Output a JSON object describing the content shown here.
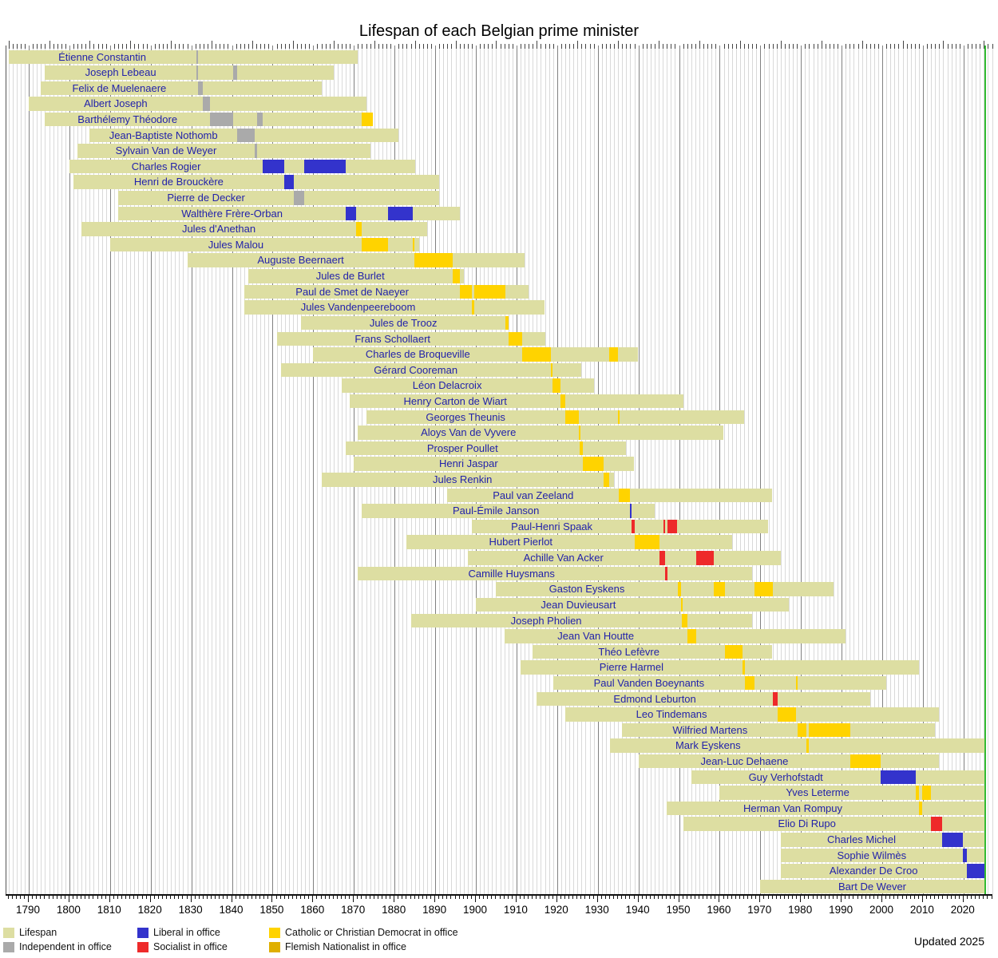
{
  "title": "Lifespan of each Belgian prime minister",
  "updated_note": "Updated 2025",
  "colors": {
    "lifespan": "#dddea2",
    "independent": "#aaaaaa",
    "liberal": "#3333cc",
    "socialist": "#ee2a2a",
    "catholic": "#ffd300",
    "flemish": "#dfaf00",
    "present_line": "#33bb33",
    "label_text": "#2222aa",
    "grid_minor": "#d9d9d9",
    "grid_major": "#808080"
  },
  "legend": [
    {
      "label": "Lifespan",
      "color_key": "lifespan",
      "col": 0,
      "row": 0
    },
    {
      "label": "Independent in office",
      "color_key": "independent",
      "col": 0,
      "row": 1
    },
    {
      "label": "Liberal in office",
      "color_key": "liberal",
      "col": 1,
      "row": 0
    },
    {
      "label": "Socialist in office",
      "color_key": "socialist",
      "col": 1,
      "row": 1
    },
    {
      "label": "Catholic or Christian Democrat in office",
      "color_key": "catholic",
      "col": 2,
      "row": 0
    },
    {
      "label": "Flemish Nationalist in office",
      "color_key": "flemish",
      "col": 2,
      "row": 1
    }
  ],
  "chart_data": {
    "type": "timeline",
    "x_axis": {
      "min": 1784.5,
      "max": 2027.3,
      "year_tick_step": 1,
      "decade_tick_step": 10,
      "tick_labels": [
        "1790",
        "1800",
        "1810",
        "1820",
        "1830",
        "1840",
        "1850",
        "1860",
        "1870",
        "1880",
        "1890",
        "1900",
        "1910",
        "1920",
        "1930",
        "1940",
        "1950",
        "1960",
        "1970",
        "1980",
        "1990",
        "2000",
        "2010",
        "2020"
      ],
      "present_year": 2025.1
    },
    "pms": [
      {
        "name": "Étienne Constantin",
        "birth": 1785,
        "death": 1871,
        "terms": [
          [
            1831.16,
            1831.2,
            "independent"
          ]
        ]
      },
      {
        "name": "Joseph Lebeau",
        "birth": 1794,
        "death": 1865,
        "terms": [
          [
            1831.24,
            1831.55,
            "independent"
          ],
          [
            1840.3,
            1841.28,
            "independent"
          ]
        ]
      },
      {
        "name": "Felix de Muelenaere",
        "birth": 1793,
        "death": 1862,
        "terms": [
          [
            1831.56,
            1832.8,
            "independent"
          ]
        ]
      },
      {
        "name": "Albert Joseph",
        "birth": 1790,
        "death": 1873,
        "terms": [
          [
            1832.8,
            1834.59,
            "independent"
          ]
        ]
      },
      {
        "name": "Barthélemy Théodore",
        "birth": 1794,
        "death": 1874.7,
        "terms": [
          [
            1834.59,
            1840.3,
            "independent"
          ],
          [
            1846.25,
            1847.61,
            "independent"
          ],
          [
            1871.93,
            1874.64,
            "catholic"
          ]
        ]
      },
      {
        "name": "Jean-Baptiste Nothomb",
        "birth": 1805,
        "death": 1881,
        "terms": [
          [
            1841.28,
            1845.5,
            "independent"
          ]
        ]
      },
      {
        "name": "Sylvain Van de Weyer",
        "birth": 1802,
        "death": 1874,
        "terms": [
          [
            1845.58,
            1846.25,
            "independent"
          ]
        ]
      },
      {
        "name": "Charles Rogier",
        "birth": 1800,
        "death": 1885,
        "terms": [
          [
            1847.61,
            1852.83,
            "liberal"
          ],
          [
            1857.86,
            1868.01,
            "liberal"
          ]
        ]
      },
      {
        "name": "Henri de Brouckère",
        "birth": 1801,
        "death": 1891,
        "terms": [
          [
            1852.83,
            1855.24,
            "liberal"
          ]
        ]
      },
      {
        "name": "Pierre de Decker",
        "birth": 1812,
        "death": 1891,
        "terms": [
          [
            1855.24,
            1857.86,
            "independent"
          ]
        ]
      },
      {
        "name": "Walthère Frère-Orban",
        "birth": 1812,
        "death": 1896,
        "terms": [
          [
            1868.01,
            1870.5,
            "liberal"
          ],
          [
            1878.46,
            1884.45,
            "liberal"
          ]
        ]
      },
      {
        "name": "Jules d'Anethan",
        "birth": 1803,
        "death": 1888,
        "terms": [
          [
            1870.5,
            1871.93,
            "catholic"
          ]
        ]
      },
      {
        "name": "Jules Malou",
        "birth": 1810,
        "death": 1886,
        "terms": [
          [
            1871.93,
            1878.46,
            "catholic"
          ],
          [
            1884.45,
            1884.82,
            "catholic"
          ]
        ]
      },
      {
        "name": "Auguste Beernaert",
        "birth": 1829,
        "death": 1912,
        "terms": [
          [
            1884.82,
            1894.23,
            "catholic"
          ]
        ]
      },
      {
        "name": "Jules de Burlet",
        "birth": 1844,
        "death": 1897,
        "terms": [
          [
            1894.23,
            1896.15,
            "catholic"
          ]
        ]
      },
      {
        "name": "Paul de Smet de Naeyer",
        "birth": 1843,
        "death": 1913,
        "terms": [
          [
            1896.15,
            1899.07,
            "catholic"
          ],
          [
            1899.59,
            1907.33,
            "catholic"
          ]
        ]
      },
      {
        "name": "Jules Vandenpeereboom",
        "birth": 1843,
        "death": 1917,
        "terms": [
          [
            1899.07,
            1899.59,
            "catholic"
          ]
        ]
      },
      {
        "name": "Jules de Trooz",
        "birth": 1857,
        "death": 1908,
        "terms": [
          [
            1907.33,
            1908.0,
            "catholic"
          ]
        ]
      },
      {
        "name": "Frans Schollaert",
        "birth": 1851,
        "death": 1917,
        "terms": [
          [
            1908.02,
            1911.46,
            "catholic"
          ]
        ]
      },
      {
        "name": "Charles de Broqueville",
        "birth": 1860,
        "death": 1940,
        "terms": [
          [
            1911.46,
            1918.42,
            "catholic"
          ],
          [
            1932.81,
            1934.89,
            "catholic"
          ]
        ]
      },
      {
        "name": "Gérard Cooreman",
        "birth": 1852,
        "death": 1926,
        "terms": [
          [
            1918.42,
            1918.89,
            "catholic"
          ]
        ]
      },
      {
        "name": "Léon Delacroix",
        "birth": 1867,
        "death": 1929,
        "terms": [
          [
            1918.89,
            1920.89,
            "catholic"
          ]
        ]
      },
      {
        "name": "Henry Carton de Wiart",
        "birth": 1869,
        "death": 1951,
        "terms": [
          [
            1920.89,
            1921.96,
            "catholic"
          ]
        ]
      },
      {
        "name": "Georges Theunis",
        "birth": 1873,
        "death": 1966,
        "terms": [
          [
            1921.96,
            1925.36,
            "catholic"
          ],
          [
            1934.89,
            1935.23,
            "catholic"
          ]
        ]
      },
      {
        "name": "Aloys Van de Vyvere",
        "birth": 1871,
        "death": 1961,
        "terms": [
          [
            1925.36,
            1925.46,
            "catholic"
          ]
        ]
      },
      {
        "name": "Prosper Poullet",
        "birth": 1868,
        "death": 1937,
        "terms": [
          [
            1925.46,
            1926.38,
            "catholic"
          ]
        ]
      },
      {
        "name": "Henri Jaspar",
        "birth": 1870,
        "death": 1939,
        "terms": [
          [
            1926.38,
            1931.43,
            "catholic"
          ]
        ]
      },
      {
        "name": "Jules Renkin",
        "birth": 1862,
        "death": 1934,
        "terms": [
          [
            1931.43,
            1932.81,
            "catholic"
          ]
        ]
      },
      {
        "name": "Paul van Zeeland",
        "birth": 1893,
        "death": 1973,
        "terms": [
          [
            1935.23,
            1937.9,
            "catholic"
          ]
        ]
      },
      {
        "name": "Paul-Émile Janson",
        "birth": 1872,
        "death": 1944,
        "terms": [
          [
            1937.9,
            1938.37,
            "liberal"
          ]
        ]
      },
      {
        "name": "Paul-Henri Spaak",
        "birth": 1899,
        "death": 1972,
        "terms": [
          [
            1938.37,
            1939.14,
            "socialist"
          ],
          [
            1946.2,
            1946.25,
            "socialist"
          ],
          [
            1947.21,
            1949.61,
            "socialist"
          ]
        ]
      },
      {
        "name": "Hubert Pierlot",
        "birth": 1883,
        "death": 1963,
        "terms": [
          [
            1939.14,
            1945.12,
            "catholic"
          ]
        ]
      },
      {
        "name": "Achille Van Acker",
        "birth": 1898,
        "death": 1975,
        "terms": [
          [
            1945.12,
            1946.2,
            "socialist"
          ],
          [
            1946.25,
            1946.59,
            "socialist"
          ],
          [
            1954.31,
            1958.48,
            "socialist"
          ]
        ]
      },
      {
        "name": "Camille Huysmans",
        "birth": 1871,
        "death": 1968,
        "terms": [
          [
            1946.59,
            1947.21,
            "socialist"
          ]
        ]
      },
      {
        "name": "Gaston Eyskens",
        "birth": 1905,
        "death": 1988,
        "terms": [
          [
            1949.61,
            1950.44,
            "catholic"
          ],
          [
            1958.48,
            1961.31,
            "catholic"
          ],
          [
            1968.46,
            1973.07,
            "catholic"
          ]
        ]
      },
      {
        "name": "Jean Duvieusart",
        "birth": 1900,
        "death": 1977,
        "terms": [
          [
            1950.44,
            1950.62,
            "catholic"
          ]
        ]
      },
      {
        "name": "Joseph Pholien",
        "birth": 1884,
        "death": 1968,
        "terms": [
          [
            1950.62,
            1952.04,
            "catholic"
          ]
        ]
      },
      {
        "name": "Jean Van Houtte",
        "birth": 1907,
        "death": 1991,
        "terms": [
          [
            1952.04,
            1954.31,
            "catholic"
          ]
        ]
      },
      {
        "name": "Théo Lefèvre",
        "birth": 1914,
        "death": 1973,
        "terms": [
          [
            1961.31,
            1965.57,
            "catholic"
          ]
        ]
      },
      {
        "name": "Pierre Harmel",
        "birth": 1911,
        "death": 2009,
        "terms": [
          [
            1965.57,
            1966.21,
            "catholic"
          ]
        ]
      },
      {
        "name": "Paul Vanden Boeynants",
        "birth": 1919,
        "death": 2001,
        "terms": [
          [
            1966.21,
            1968.46,
            "catholic"
          ],
          [
            1978.8,
            1979.25,
            "catholic"
          ]
        ]
      },
      {
        "name": "Edmond Leburton",
        "birth": 1915,
        "death": 1997,
        "terms": [
          [
            1973.07,
            1974.31,
            "socialist"
          ]
        ]
      },
      {
        "name": "Leo Tindemans",
        "birth": 1922,
        "death": 2014,
        "terms": [
          [
            1974.31,
            1978.8,
            "catholic"
          ]
        ]
      },
      {
        "name": "Wilfried Martens",
        "birth": 1936,
        "death": 2013,
        "terms": [
          [
            1979.25,
            1981.26,
            "catholic"
          ],
          [
            1981.96,
            1992.18,
            "catholic"
          ]
        ]
      },
      {
        "name": "Mark Eyskens",
        "birth": 1933,
        "death": null,
        "terms": [
          [
            1981.26,
            1981.96,
            "catholic"
          ]
        ]
      },
      {
        "name": "Jean-Luc Dehaene",
        "birth": 1940,
        "death": 2014,
        "terms": [
          [
            1992.18,
            1999.52,
            "catholic"
          ]
        ]
      },
      {
        "name": "Guy Verhofstadt",
        "birth": 1953,
        "death": null,
        "terms": [
          [
            1999.52,
            2008.22,
            "liberal"
          ]
        ]
      },
      {
        "name": "Yves Leterme",
        "birth": 1960,
        "death": null,
        "terms": [
          [
            2008.22,
            2008.99,
            "catholic"
          ],
          [
            2009.9,
            2011.93,
            "catholic"
          ]
        ]
      },
      {
        "name": "Herman Van Rompuy",
        "birth": 1947,
        "death": null,
        "terms": [
          [
            2008.99,
            2009.9,
            "catholic"
          ]
        ]
      },
      {
        "name": "Elio Di Rupo",
        "birth": 1951,
        "death": null,
        "terms": [
          [
            2011.93,
            2014.78,
            "socialist"
          ]
        ]
      },
      {
        "name": "Charles Michel",
        "birth": 1975,
        "death": null,
        "terms": [
          [
            2014.78,
            2019.82,
            "liberal"
          ]
        ]
      },
      {
        "name": "Sophie Wilmès",
        "birth": 1975,
        "death": null,
        "terms": [
          [
            2019.82,
            2020.75,
            "liberal"
          ]
        ]
      },
      {
        "name": "Alexander De Croo",
        "birth": 1975,
        "death": null,
        "terms": [
          [
            2020.75,
            2025.09,
            "liberal"
          ]
        ]
      },
      {
        "name": "Bart De Wever",
        "birth": 1970,
        "death": null,
        "terms": [
          [
            2025.09,
            2025.45,
            "flemish"
          ]
        ]
      }
    ]
  }
}
